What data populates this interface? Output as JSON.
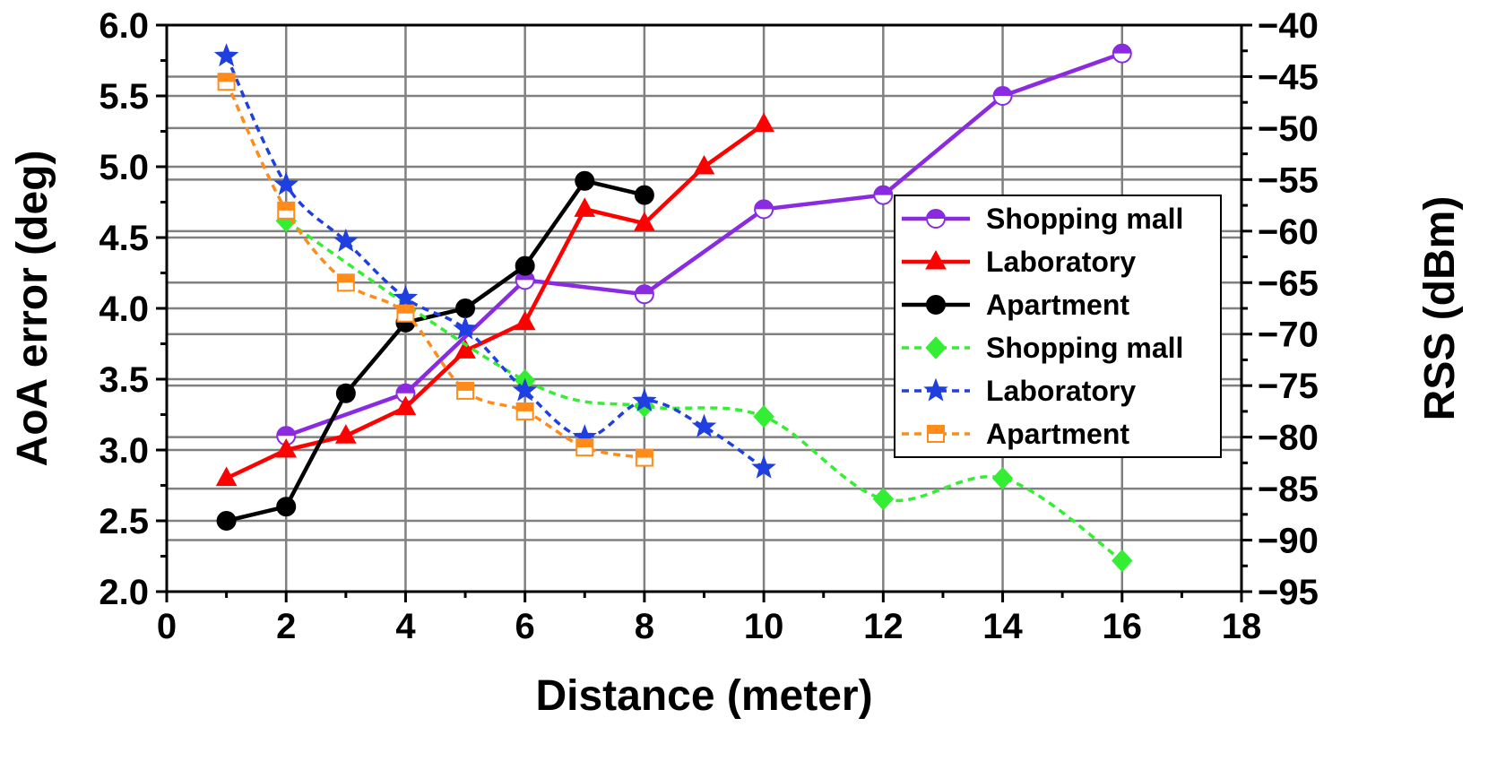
{
  "chart_data": {
    "type": "line",
    "xlabel": "Distance (meter)",
    "ylabel": "AoA error (deg)",
    "y2label": "RSS (dBm)",
    "xlim": [
      0,
      18
    ],
    "ylim": [
      2.0,
      6.0
    ],
    "y2lim": [
      -95,
      -40
    ],
    "xticks": [
      "0",
      "2",
      "4",
      "6",
      "8",
      "10",
      "12",
      "14",
      "16",
      "18"
    ],
    "yticks": [
      "2.0",
      "2.5",
      "3.0",
      "3.5",
      "4.0",
      "4.5",
      "5.0",
      "5.5",
      "6.0"
    ],
    "y2ticks": [
      "−95",
      "−90",
      "−85",
      "−80",
      "−75",
      "−70",
      "−65",
      "−60",
      "−55",
      "−50",
      "−45",
      "−40"
    ],
    "grid": true,
    "legend_position": "right",
    "series": [
      {
        "name": "Shopping mall",
        "axis": "left",
        "color": "#8a2be2",
        "line": "solid",
        "marker": "half-circle",
        "x": [
          2,
          4,
          6,
          8,
          10,
          12,
          14,
          16
        ],
        "y": [
          3.1,
          3.4,
          4.2,
          4.1,
          4.7,
          4.8,
          5.5,
          5.8
        ]
      },
      {
        "name": "Laboratory",
        "axis": "left",
        "color": "#ff0000",
        "line": "solid",
        "marker": "triangle",
        "x": [
          1,
          2,
          3,
          4,
          5,
          6,
          7,
          8,
          9,
          10
        ],
        "y": [
          2.8,
          3.0,
          3.1,
          3.3,
          3.7,
          3.9,
          4.7,
          4.6,
          5.0,
          5.3
        ]
      },
      {
        "name": "Apartment",
        "axis": "left",
        "color": "#000000",
        "line": "solid",
        "marker": "circle",
        "x": [
          1,
          2,
          3,
          4,
          5,
          6,
          7,
          8
        ],
        "y": [
          2.5,
          2.6,
          3.4,
          3.9,
          4.0,
          4.3,
          4.9,
          4.8
        ]
      },
      {
        "name": "Shopping mall",
        "axis": "right",
        "color": "#33ee33",
        "line": "dashed",
        "marker": "diamond",
        "x": [
          2,
          6,
          8,
          10,
          12,
          14,
          16
        ],
        "y": [
          -59,
          -74.5,
          -77,
          -78,
          -86,
          -84,
          -92
        ]
      },
      {
        "name": "Laboratory",
        "axis": "right",
        "color": "#1f3fe0",
        "line": "dashed",
        "marker": "star",
        "x": [
          1,
          2,
          3,
          4,
          5,
          6,
          7,
          8,
          9,
          10
        ],
        "y": [
          -43,
          -55.5,
          -61,
          -66.5,
          -69.5,
          -75.5,
          -80,
          -76.5,
          -79,
          -83
        ]
      },
      {
        "name": "Apartment",
        "axis": "right",
        "color": "#ff8c1a",
        "line": "dashed",
        "marker": "half-square",
        "x": [
          1,
          2,
          3,
          4,
          5,
          6,
          7,
          8
        ],
        "y": [
          -45.5,
          -58,
          -65,
          -68,
          -75.5,
          -77.5,
          -81,
          -82
        ]
      }
    ]
  }
}
